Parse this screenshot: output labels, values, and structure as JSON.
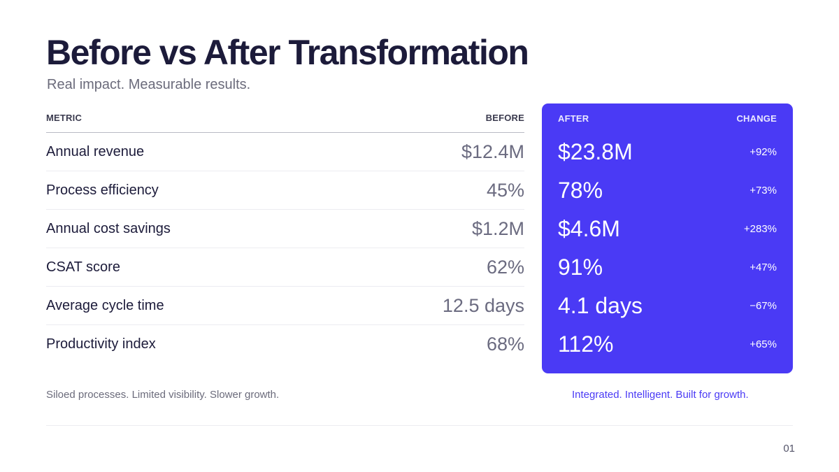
{
  "slide": {
    "title": "Before vs After Transformation",
    "subtitle": "Real impact. Measurable results."
  },
  "table": {
    "headers": {
      "metric": "METRIC",
      "before": "BEFORE",
      "after": "AFTER",
      "change": "CHANGE"
    },
    "rows": [
      {
        "metric": "Annual revenue",
        "before": "$12.4M",
        "after": "$23.8M",
        "change": "+92%"
      },
      {
        "metric": "Process efficiency",
        "before": "45%",
        "after": "78%",
        "change": "+73%"
      },
      {
        "metric": "Annual cost savings",
        "before": "$1.2M",
        "after": "$4.6M",
        "change": "+283%"
      },
      {
        "metric": "CSAT score",
        "before": "62%",
        "after": "91%",
        "change": "+47%"
      },
      {
        "metric": "Average cycle time",
        "before": "12.5 days",
        "after": "4.1 days",
        "change": "−67%"
      },
      {
        "metric": "Productivity index",
        "before": "68%",
        "after": "112%",
        "change": "+65%"
      }
    ]
  },
  "captions": {
    "before": "Siloed processes. Limited visibility. Slower growth.",
    "after": "Integrated. Intelligent. Built for growth."
  },
  "footer": {
    "page_number": "01"
  },
  "colors": {
    "accent": "#4a3af5",
    "heading": "#1c1b3a",
    "muted": "#6b6b7b"
  }
}
